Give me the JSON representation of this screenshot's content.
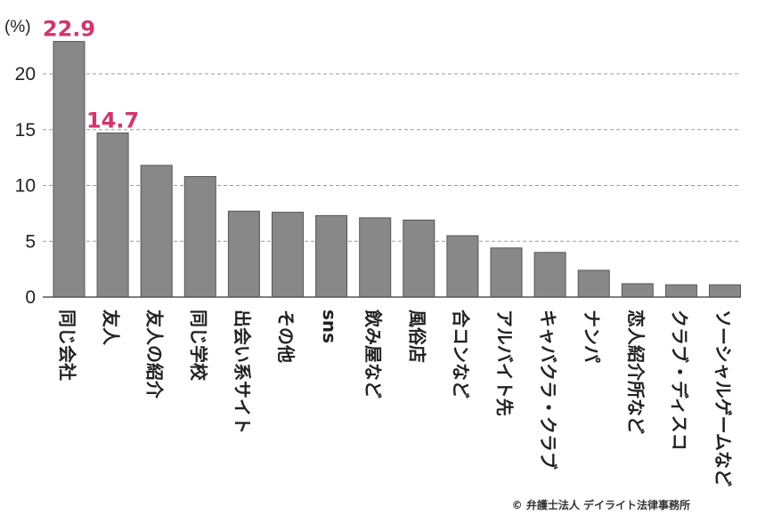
{
  "chart_data": {
    "type": "bar",
    "title": "",
    "xlabel": "",
    "ylabel": "(%)",
    "ylim": [
      0,
      23.5
    ],
    "yticks": [
      0,
      5,
      10,
      15,
      20
    ],
    "grid": "horizontal-dashed",
    "bar_color": "#888888",
    "label_color": "#d6336c",
    "categories": [
      "同じ会社",
      "友人",
      "友人の紹介",
      "同じ学校",
      "出会い系サイト",
      "その他",
      "sns",
      "飲み屋など",
      "風俗店",
      "合コンなど",
      "アルバイト先",
      "キャバクラ・クラブ",
      "ナンパ",
      "恋人紹介所など",
      "クラブ・ディスコ",
      "ソーシャルゲームなど"
    ],
    "values": [
      22.9,
      14.7,
      11.8,
      10.8,
      7.7,
      7.6,
      7.3,
      7.1,
      6.9,
      5.5,
      4.4,
      4.0,
      2.4,
      1.2,
      1.1,
      1.1
    ],
    "data_labels": [
      {
        "index": 0,
        "text": "22.9"
      },
      {
        "index": 1,
        "text": "14.7"
      }
    ],
    "credit": "© 弁護士法人 デイライト法律事務所"
  }
}
